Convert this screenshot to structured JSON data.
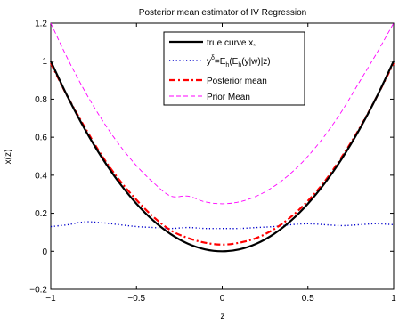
{
  "chart_data": {
    "type": "line",
    "title": "Posterior mean estimator of IV Regression",
    "xlabel": "z",
    "ylabel": "x(z)",
    "xlim": [
      -1,
      1
    ],
    "ylim": [
      -0.2,
      1.2
    ],
    "xticks": [
      -1,
      -0.5,
      0,
      0.5,
      1
    ],
    "xtick_labels": [
      "−1",
      "−0.5",
      "0",
      "0.5",
      "1"
    ],
    "yticks": [
      -0.2,
      0,
      0.2,
      0.4,
      0.6,
      0.8,
      1,
      1.2
    ],
    "ytick_labels": [
      "−0.2",
      "0",
      "0.2",
      "0.4",
      "0.6",
      "0.8",
      "1",
      "1.2"
    ],
    "grid": false,
    "legend_position": "top-right",
    "x": [
      -1,
      -0.9,
      -0.8,
      -0.7,
      -0.6,
      -0.5,
      -0.4,
      -0.3,
      -0.2,
      -0.1,
      0,
      0.1,
      0.2,
      0.3,
      0.4,
      0.5,
      0.6,
      0.7,
      0.8,
      0.9,
      1
    ],
    "series": [
      {
        "name": "true curve x",
        "name_sub": "*",
        "key": "true",
        "color": "#000000",
        "style": "solid",
        "values": [
          1,
          0.81,
          0.64,
          0.49,
          0.36,
          0.25,
          0.16,
          0.09,
          0.04,
          0.01,
          0,
          0.01,
          0.04,
          0.09,
          0.16,
          0.25,
          0.36,
          0.49,
          0.64,
          0.81,
          1
        ]
      },
      {
        "name": "y=E(E(y|w)|z)",
        "key": "ydelta",
        "color": "#0000cc",
        "style": "dotted",
        "values": [
          0.13,
          0.14,
          0.155,
          0.15,
          0.14,
          0.13,
          0.125,
          0.12,
          0.125,
          0.12,
          0.12,
          0.12,
          0.125,
          0.13,
          0.14,
          0.145,
          0.14,
          0.135,
          0.14,
          0.145,
          0.14
        ]
      },
      {
        "name": "Posterior mean",
        "key": "posterior",
        "color": "#ff0000",
        "style": "dashdot",
        "values": [
          0.99,
          0.81,
          0.65,
          0.5,
          0.375,
          0.27,
          0.18,
          0.11,
          0.07,
          0.045,
          0.035,
          0.045,
          0.07,
          0.115,
          0.18,
          0.265,
          0.37,
          0.5,
          0.645,
          0.81,
          0.99
        ]
      },
      {
        "name": "Prior Mean",
        "key": "prior",
        "color": "#ff00ff",
        "style": "dashed",
        "values": [
          1.2,
          1.01,
          0.84,
          0.69,
          0.56,
          0.45,
          0.36,
          0.29,
          0.29,
          0.26,
          0.25,
          0.26,
          0.29,
          0.34,
          0.41,
          0.5,
          0.61,
          0.74,
          0.89,
          1.04,
          1.2
        ]
      }
    ],
    "legend": {
      "entries": [
        {
          "key": "true",
          "label": "true curve x",
          "sub": "*"
        },
        {
          "key": "ydelta",
          "label_parts": [
            "y",
            "δ",
            "=E",
            "h",
            "(E",
            "h",
            "(y|w)|z)"
          ]
        },
        {
          "key": "posterior",
          "label": "Posterior mean"
        },
        {
          "key": "prior",
          "label": "Prior Mean"
        }
      ]
    }
  }
}
